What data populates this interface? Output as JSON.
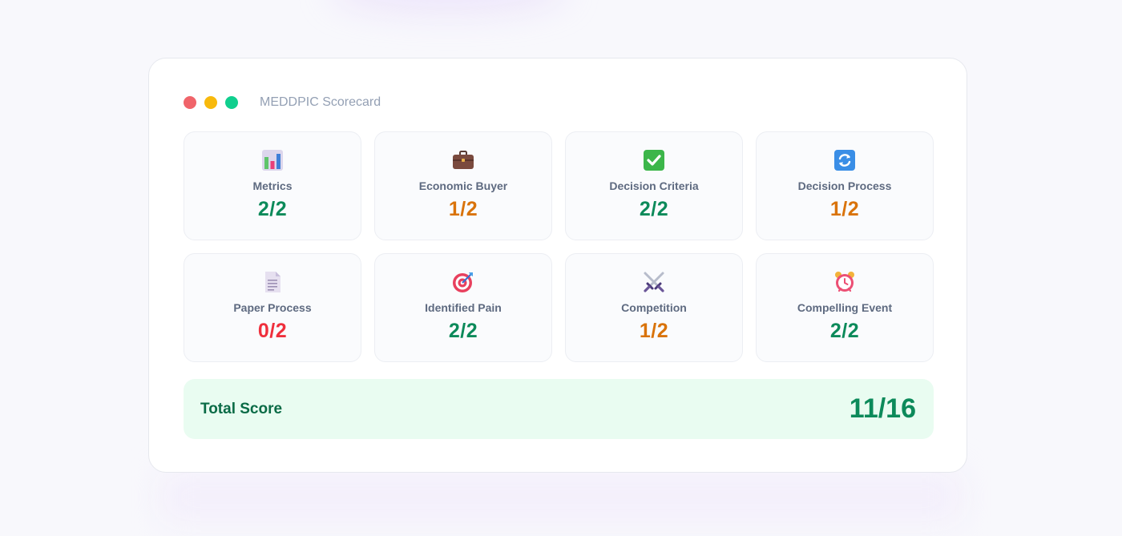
{
  "window": {
    "title": "MEDDPIC Scorecard",
    "controls": {
      "close_color": "#f0646a",
      "minimize_color": "#f8b90c",
      "maximize_color": "#10cf8e"
    }
  },
  "items": [
    {
      "label": "Metrics",
      "score": "2/2",
      "icon": "bar-chart-icon",
      "status": "full"
    },
    {
      "label": "Economic Buyer",
      "score": "1/2",
      "icon": "briefcase-icon",
      "status": "half"
    },
    {
      "label": "Decision Criteria",
      "score": "2/2",
      "icon": "check-box-icon",
      "status": "full"
    },
    {
      "label": "Decision Process",
      "score": "1/2",
      "icon": "refresh-icon",
      "status": "half"
    },
    {
      "label": "Paper Process",
      "score": "0/2",
      "icon": "document-icon",
      "status": "zero"
    },
    {
      "label": "Identified Pain",
      "score": "2/2",
      "icon": "target-icon",
      "status": "full"
    },
    {
      "label": "Competition",
      "score": "1/2",
      "icon": "crossed-swords-icon",
      "status": "half"
    },
    {
      "label": "Compelling Event",
      "score": "2/2",
      "icon": "alarm-clock-icon",
      "status": "full"
    }
  ],
  "total": {
    "label": "Total Score",
    "value": "11/16"
  },
  "colors": {
    "full": "#0c8a5a",
    "half": "#d9730a",
    "zero": "#ef2f3c",
    "total_bg": "#e9fcf1"
  }
}
